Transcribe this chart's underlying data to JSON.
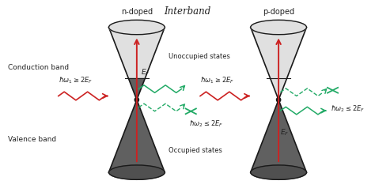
{
  "title": "Interband",
  "bg_color": "#ffffff",
  "cone_light_color": "#e0e0e0",
  "cone_dark_color": "#606060",
  "cone_edge_color": "#1a1a1a",
  "arrow_red_color": "#cc2222",
  "wave_red_color": "#cc2222",
  "wave_green_color": "#22aa66",
  "cross_color": "#22aa66",
  "text_color": "#222222",
  "n_doped_label": "n-doped",
  "p_doped_label": "p-doped",
  "conduction_band_label": "Conduction band",
  "valence_band_label": "Valence band",
  "unoccupied_label": "Unoccupied states",
  "occupied_label": "Occupied states",
  "hw1_label": "$\\hbar\\omega_1 \\geq 2E_F$",
  "hw2_label": "$\\hbar\\omega_2 \\leq 2E_F$",
  "ef_label": "$E_F$"
}
